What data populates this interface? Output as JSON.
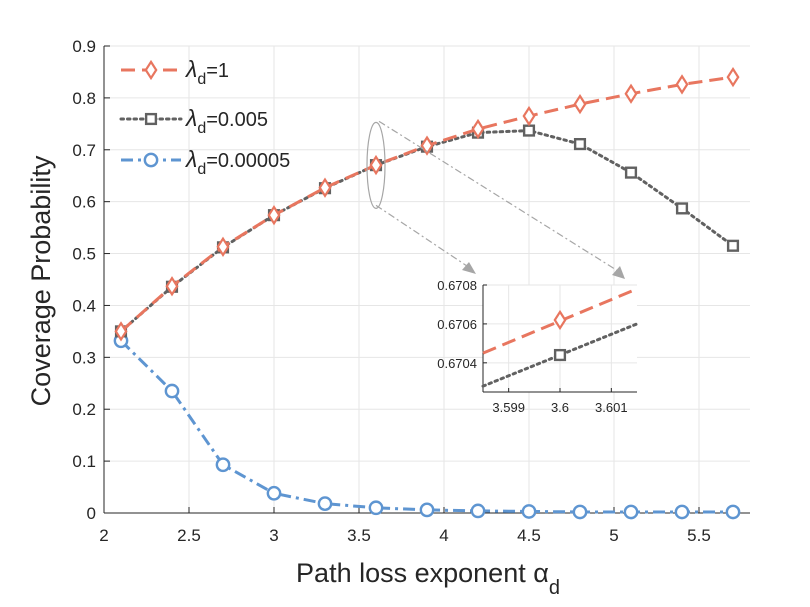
{
  "chart_data": {
    "type": "line",
    "title": "",
    "xlabel": "Path loss exponent α",
    "xlabel_sub": "d",
    "ylabel": "Coverage Probability",
    "xlim": [
      2,
      5.8
    ],
    "ylim": [
      0,
      0.9
    ],
    "grid": true,
    "legend_position": "top-left",
    "x_ticks": [
      "2",
      "2.5",
      "3",
      "3.5",
      "4",
      "4.5",
      "5",
      "5.5"
    ],
    "y_ticks": [
      "0",
      "0.1",
      "0.2",
      "0.3",
      "0.4",
      "0.5",
      "0.6",
      "0.7",
      "0.8",
      "0.9"
    ],
    "x": [
      2.1,
      2.4,
      2.7,
      3.0,
      3.3,
      3.6,
      3.9,
      4.2,
      4.5,
      4.8,
      5.1,
      5.4,
      5.7
    ],
    "series": [
      {
        "name": "λd=1",
        "legend_symbol": "λ",
        "legend_sub": "d",
        "legend_rest": "=1",
        "color": "#E8765F",
        "marker": "diamond",
        "dash": "dashed",
        "values": [
          0.35,
          0.437,
          0.513,
          0.574,
          0.627,
          0.6706,
          0.708,
          0.74,
          0.765,
          0.788,
          0.808,
          0.826,
          0.84
        ]
      },
      {
        "name": "λd=0.005",
        "legend_symbol": "λ",
        "legend_sub": "d",
        "legend_rest": "=0.005",
        "color": "#616161",
        "marker": "square",
        "dash": "dotted",
        "values": [
          0.35,
          0.436,
          0.512,
          0.574,
          0.626,
          0.6704,
          0.706,
          0.733,
          0.737,
          0.711,
          0.656,
          0.587,
          0.515
        ]
      },
      {
        "name": "λd=0.00005",
        "legend_symbol": "λ",
        "legend_sub": "d",
        "legend_rest": "=0.00005",
        "color": "#5E95D1",
        "marker": "circle",
        "dash": "dashdot",
        "values": [
          0.332,
          0.235,
          0.093,
          0.038,
          0.018,
          0.01,
          0.006,
          0.004,
          0.003,
          0.002,
          0.002,
          0.002,
          0.002
        ]
      }
    ],
    "inset": {
      "xlim": [
        3.5985,
        3.6015
      ],
      "ylim": [
        0.67025,
        0.6708
      ],
      "x_ticks": [
        "3.599",
        "3.6",
        "3.601"
      ],
      "y_ticks": [
        "0.6704",
        "0.6706",
        "0.6708"
      ],
      "lines": [
        {
          "series": "λd=1",
          "x": [
            3.5985,
            3.6015
          ],
          "y": [
            0.67045,
            0.67078
          ],
          "marker_x": 3.6,
          "marker_y": 0.67062
        },
        {
          "series": "λd=0.005",
          "x": [
            3.5985,
            3.6015
          ],
          "y": [
            0.67028,
            0.6706
          ],
          "marker_x": 3.6,
          "marker_y": 0.67044
        }
      ]
    }
  }
}
